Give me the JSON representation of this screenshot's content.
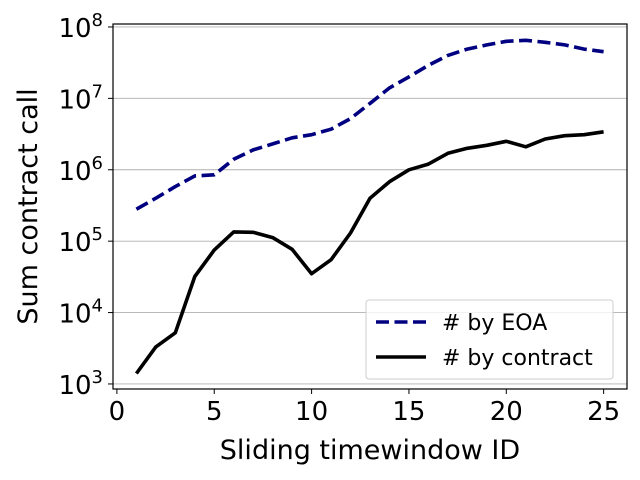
{
  "chart_data": {
    "type": "line",
    "xlabel": "Sliding timewindow ID",
    "ylabel": "Sum contract call",
    "xlim": [
      -0.2,
      26.2
    ],
    "ylim": [
      850,
      110000000
    ],
    "yscale": "log",
    "grid": "horizontal",
    "legend_position": "lower-right",
    "xticks": [
      0,
      5,
      10,
      15,
      20,
      25
    ],
    "yticks": [
      {
        "value": 1000,
        "base": "10",
        "exp": "3"
      },
      {
        "value": 10000,
        "base": "10",
        "exp": "4"
      },
      {
        "value": 100000,
        "base": "10",
        "exp": "5"
      },
      {
        "value": 1000000,
        "base": "10",
        "exp": "6"
      },
      {
        "value": 10000000,
        "base": "10",
        "exp": "7"
      },
      {
        "value": 100000000,
        "base": "10",
        "exp": "8"
      }
    ],
    "x": [
      1,
      2,
      3,
      4,
      5,
      6,
      7,
      8,
      9,
      10,
      11,
      12,
      13,
      14,
      15,
      16,
      17,
      18,
      19,
      20,
      21,
      22,
      23,
      24,
      25
    ],
    "series": [
      {
        "name": "# by EOA",
        "color": "#000080",
        "style": "dashed",
        "values": [
          280000,
          400000,
          580000,
          820000,
          850000,
          1400000,
          1900000,
          2300000,
          2800000,
          3100000,
          3700000,
          5200000,
          8500000,
          14000000,
          20000000,
          29000000,
          40000000,
          49000000,
          56000000,
          63000000,
          65000000,
          61000000,
          56000000,
          49000000,
          45000000
        ]
      },
      {
        "name": "# by contract",
        "color": "#000000",
        "style": "solid",
        "values": [
          1400,
          3300,
          5200,
          32000,
          75000,
          135000,
          133000,
          112000,
          77000,
          35000,
          55000,
          130000,
          400000,
          680000,
          1000000,
          1200000,
          1700000,
          2000000,
          2200000,
          2500000,
          2100000,
          2700000,
          3000000,
          3100000,
          3400000
        ]
      }
    ]
  }
}
